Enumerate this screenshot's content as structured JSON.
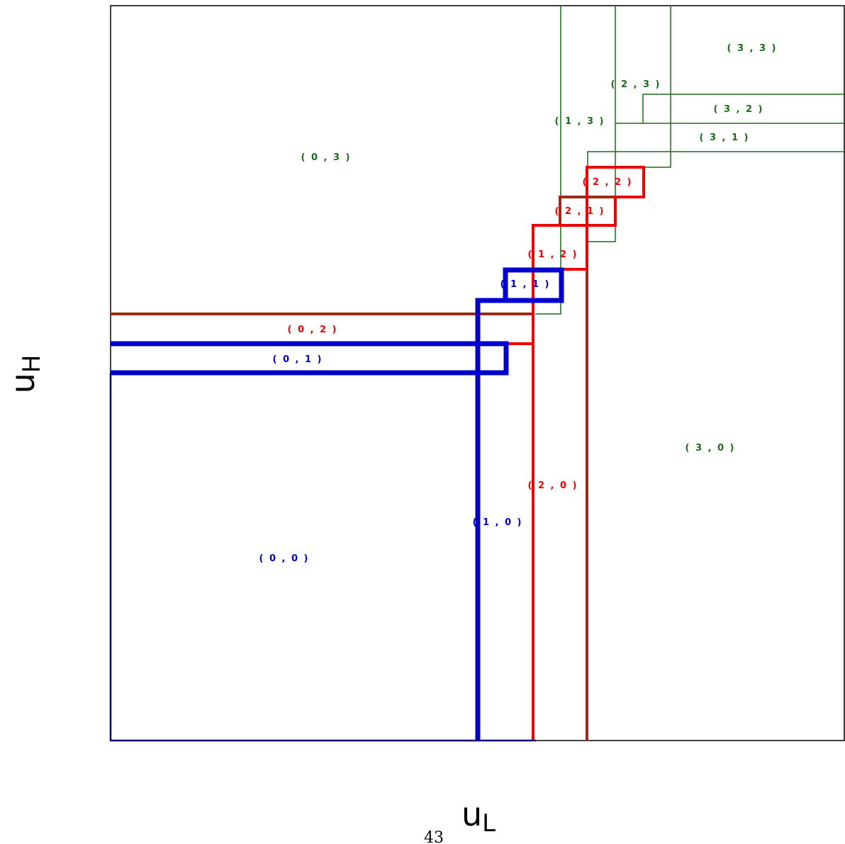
{
  "axes": {
    "x_main": "u",
    "x_sub": "L",
    "y_main": "u",
    "y_sub": "H"
  },
  "page_number": "43",
  "colors": {
    "frame": "#000000",
    "blue": "#0000cc",
    "red": "#ee0000",
    "brown": "#9b2a16",
    "green": "#1a6b1a",
    "navy": "#000080"
  },
  "regions": [
    {
      "id": "0-0",
      "label": "( 0 , 0 )",
      "group": "blue"
    },
    {
      "id": "1-0",
      "label": "( 1 , 0 )",
      "group": "blue"
    },
    {
      "id": "0-1",
      "label": "( 0 , 1 )",
      "group": "blue"
    },
    {
      "id": "1-1",
      "label": "( 1 , 1 )",
      "group": "blue"
    },
    {
      "id": "2-0",
      "label": "( 2 , 0 )",
      "group": "red"
    },
    {
      "id": "0-2",
      "label": "( 0 , 2 )",
      "group": "red"
    },
    {
      "id": "1-2",
      "label": "( 1 , 2 )",
      "group": "red"
    },
    {
      "id": "2-1",
      "label": "( 2 , 1 )",
      "group": "red"
    },
    {
      "id": "2-2",
      "label": "( 2 , 2 )",
      "group": "red"
    },
    {
      "id": "3-0",
      "label": "( 3 , 0 )",
      "group": "green"
    },
    {
      "id": "0-3",
      "label": "( 0 , 3 )",
      "group": "green"
    },
    {
      "id": "1-3",
      "label": "( 1 , 3 )",
      "group": "green"
    },
    {
      "id": "2-3",
      "label": "( 2 , 3 )",
      "group": "green"
    },
    {
      "id": "3-1",
      "label": "( 3 , 1 )",
      "group": "green"
    },
    {
      "id": "3-2",
      "label": "( 3 , 2 )",
      "group": "green"
    },
    {
      "id": "3-3",
      "label": "( 3 , 3 )",
      "group": "green"
    }
  ]
}
